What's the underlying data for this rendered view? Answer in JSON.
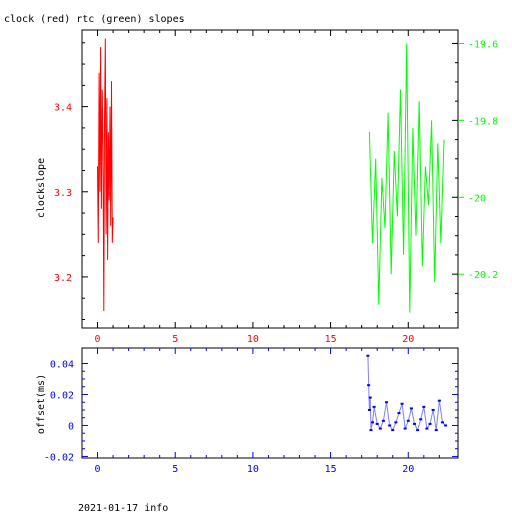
{
  "title": "clock (red) rtc (green) slopes",
  "footer": "2021-01-17 info",
  "colors": {
    "clock": "#ff0000",
    "rtc": "#00ff00",
    "offset": "#0000ff",
    "frame": "#000000"
  },
  "chart_data": [
    {
      "type": "line",
      "title": "clock (red) rtc (green) slopes",
      "xlabel": "",
      "ylabel": "clockslope",
      "xlim": [
        -1,
        23.2
      ],
      "ylim_left": [
        3.14,
        3.49
      ],
      "ylim_right": [
        -20.34,
        -19.565
      ],
      "x_ticks": [
        0,
        5,
        10,
        15,
        20
      ],
      "y_ticks_left": [
        3.2,
        3.3,
        3.4
      ],
      "y_ticks_right": [
        -20.2,
        -20,
        -19.8,
        -19.6
      ],
      "grid": false,
      "series": [
        {
          "name": "clock",
          "axis": "left",
          "color": "#ff0000",
          "x": [
            0.0,
            0.05,
            0.1,
            0.15,
            0.2,
            0.25,
            0.3,
            0.35,
            0.4,
            0.45,
            0.5,
            0.55,
            0.6,
            0.65,
            0.7,
            0.75,
            0.8,
            0.85,
            0.9,
            0.95,
            1.0
          ],
          "y": [
            3.33,
            3.24,
            3.44,
            3.3,
            3.47,
            3.28,
            3.42,
            3.35,
            3.16,
            3.38,
            3.48,
            3.25,
            3.41,
            3.22,
            3.37,
            3.29,
            3.4,
            3.26,
            3.43,
            3.24,
            3.27
          ]
        },
        {
          "name": "rtc",
          "axis": "right",
          "color": "#00ff00",
          "x": [
            17.5,
            17.7,
            17.9,
            18.1,
            18.3,
            18.5,
            18.7,
            18.9,
            19.1,
            19.3,
            19.5,
            19.7,
            19.9,
            20.1,
            20.3,
            20.5,
            20.7,
            20.9,
            21.1,
            21.3,
            21.5,
            21.7,
            21.9,
            22.1,
            22.3
          ],
          "y": [
            -19.83,
            -20.12,
            -19.9,
            -20.28,
            -19.95,
            -20.08,
            -19.78,
            -20.2,
            -19.88,
            -20.05,
            -19.72,
            -20.15,
            -19.6,
            -20.3,
            -19.82,
            -20.1,
            -19.75,
            -20.18,
            -19.92,
            -20.02,
            -19.8,
            -20.22,
            -19.86,
            -20.12,
            -19.85
          ]
        }
      ]
    },
    {
      "type": "scatter",
      "title": "",
      "xlabel": "",
      "ylabel": "offset(ms)",
      "xlim": [
        -1,
        23.2
      ],
      "ylim": [
        -0.021,
        0.05
      ],
      "x_ticks": [
        0,
        5,
        10,
        15,
        20
      ],
      "y_ticks": [
        -0.02,
        0,
        0.02,
        0.04
      ],
      "grid": false,
      "series": [
        {
          "name": "offset",
          "color": "#0000ff",
          "x": [
            17.4,
            17.45,
            17.5,
            17.55,
            17.6,
            17.7,
            17.8,
            18.0,
            18.2,
            18.4,
            18.6,
            18.8,
            19.0,
            19.2,
            19.4,
            19.6,
            19.8,
            20.0,
            20.2,
            20.4,
            20.6,
            20.8,
            21.0,
            21.2,
            21.4,
            21.6,
            21.8,
            22.0,
            22.2,
            22.4
          ],
          "y": [
            0.045,
            0.026,
            0.01,
            0.018,
            -0.003,
            0.002,
            0.012,
            0.001,
            -0.002,
            0.003,
            0.015,
            0.0,
            -0.003,
            0.002,
            0.008,
            0.014,
            -0.002,
            0.003,
            0.011,
            0.001,
            -0.003,
            0.004,
            0.012,
            -0.002,
            0.001,
            0.01,
            -0.003,
            0.016,
            0.002,
            0.0
          ]
        }
      ]
    }
  ]
}
